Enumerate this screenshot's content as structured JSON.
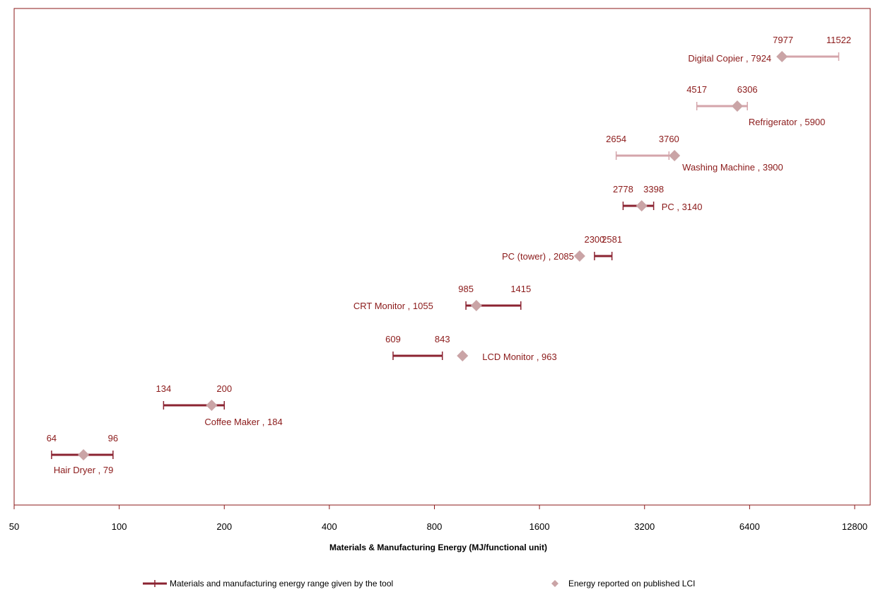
{
  "chart_data": {
    "type": "scatter",
    "xlabel": "Materials & Manufacturing Energy (MJ/functional unit)",
    "x_scale": "log2",
    "xlim": [
      50,
      12800
    ],
    "x_ticks": [
      "50",
      "100",
      "200",
      "400",
      "800",
      "1600",
      "3200",
      "6400",
      "12800"
    ],
    "legend": {
      "placement": "bottom",
      "range_label": "Materials and manufacturing energy range given by the tool",
      "point_label": "Energy reported on published LCI"
    },
    "colors": {
      "range_dark": "#8b2331",
      "range_light": "#d4a5ab",
      "point": "#caa4a6",
      "text": "#8b1a1a",
      "frame": "#8b1a1a"
    },
    "items": [
      {
        "name": "Hair Dryer",
        "low": 64,
        "high": 96,
        "reported": 79,
        "label": "Hair Dryer , 79"
      },
      {
        "name": "Coffee Maker",
        "low": 134,
        "high": 200,
        "reported": 184,
        "label": "Coffee Maker , 184"
      },
      {
        "name": "LCD Monitor",
        "low": 609,
        "high": 843,
        "reported": 963,
        "label": "LCD Monitor , 963"
      },
      {
        "name": "CRT Monitor",
        "low": 985,
        "high": 1415,
        "reported": 1055,
        "label": "CRT Monitor , 1055"
      },
      {
        "name": "PC (tower)",
        "low": 2300,
        "high": 2581,
        "reported": 2085,
        "label": "PC (tower) , 2085"
      },
      {
        "name": "PC",
        "low": 2778,
        "high": 3398,
        "reported": 3140,
        "label": "PC , 3140"
      },
      {
        "name": "Washing Machine",
        "low": 2654,
        "high": 3760,
        "reported": 3900,
        "label": "Washing Machine , 3900"
      },
      {
        "name": "Refrigerator",
        "low": 4517,
        "high": 6306,
        "reported": 5900,
        "label": "Refrigerator , 5900"
      },
      {
        "name": "Digital Copier",
        "low": 7977,
        "high": 11522,
        "reported": 7924,
        "label": "Digital Copier , 7924"
      }
    ]
  }
}
